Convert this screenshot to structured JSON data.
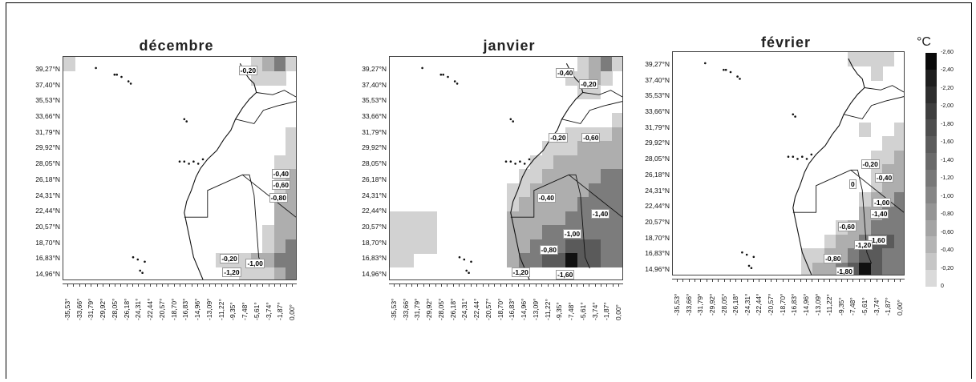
{
  "panels": [
    {
      "title": "décembre",
      "labels": [
        "-0,20",
        "-0,40",
        "-0,60",
        "-0,80",
        "-0,20",
        "-1,00",
        "-1,20"
      ]
    },
    {
      "title": "janvier",
      "labels": [
        "-0,40",
        "-0,20",
        "-0,20",
        "-0,60",
        "-0,40",
        "-1,40",
        "-1,00",
        "-0,80",
        "-1,20",
        "-1,60"
      ]
    },
    {
      "title": "février",
      "labels": [
        "-0,20",
        "-0,40",
        "0",
        "-1,00",
        "-1,40",
        "-0,60",
        "-1,60",
        "-1,20",
        "-0,80",
        "-1,80"
      ]
    }
  ],
  "y_ticks": [
    "39,27°N",
    "37,40°N",
    "35,53°N",
    "33,66°N",
    "31,79°N",
    "29,92°N",
    "28,05°N",
    "26,18°N",
    "24,31°N",
    "22,44°N",
    "20,57°N",
    "18,70°N",
    "16,83°N",
    "14,96°N"
  ],
  "x_ticks": [
    "-35,53°",
    "-33,66°",
    "-31,79°",
    "-29,92°",
    "-28,05°",
    "-26,18°",
    "-24,31°",
    "-22,44°",
    "-20,57°",
    "-18,70°",
    "-16,83°",
    "-14,96°",
    "-13,09°",
    "-11,22°",
    "-9,35°",
    "-7,48°",
    "-5,61°",
    "-3,74°",
    "-1,87°",
    "0,00°"
  ],
  "legend": {
    "unit": "°C",
    "ticks": [
      "-2,60",
      "-2,40",
      "-2,20",
      "-2,00",
      "-1,80",
      "-1,60",
      "-1,40",
      "-1,20",
      "-1,00",
      "-0,80",
      "-0,60",
      "-0,40",
      "-0,20",
      "0"
    ],
    "colors": [
      "#0a0a0a",
      "#1e1e1e",
      "#2e2e2e",
      "#3e3e3e",
      "#4e4e4e",
      "#5c5c5c",
      "#6a6a6a",
      "#787878",
      "#868686",
      "#959595",
      "#a4a4a4",
      "#b4b4b4",
      "#c6c6c6",
      "#dadada"
    ]
  },
  "colors": {
    "frame": "#000000",
    "map_border": "#444444",
    "coast": "#111111",
    "light_cell": "#d2d2d2",
    "mid_cell": "#aeaeae",
    "dark_cell": "#7c7c7c",
    "darker_cell": "#5a5a5a",
    "black_cell": "#111111"
  }
}
